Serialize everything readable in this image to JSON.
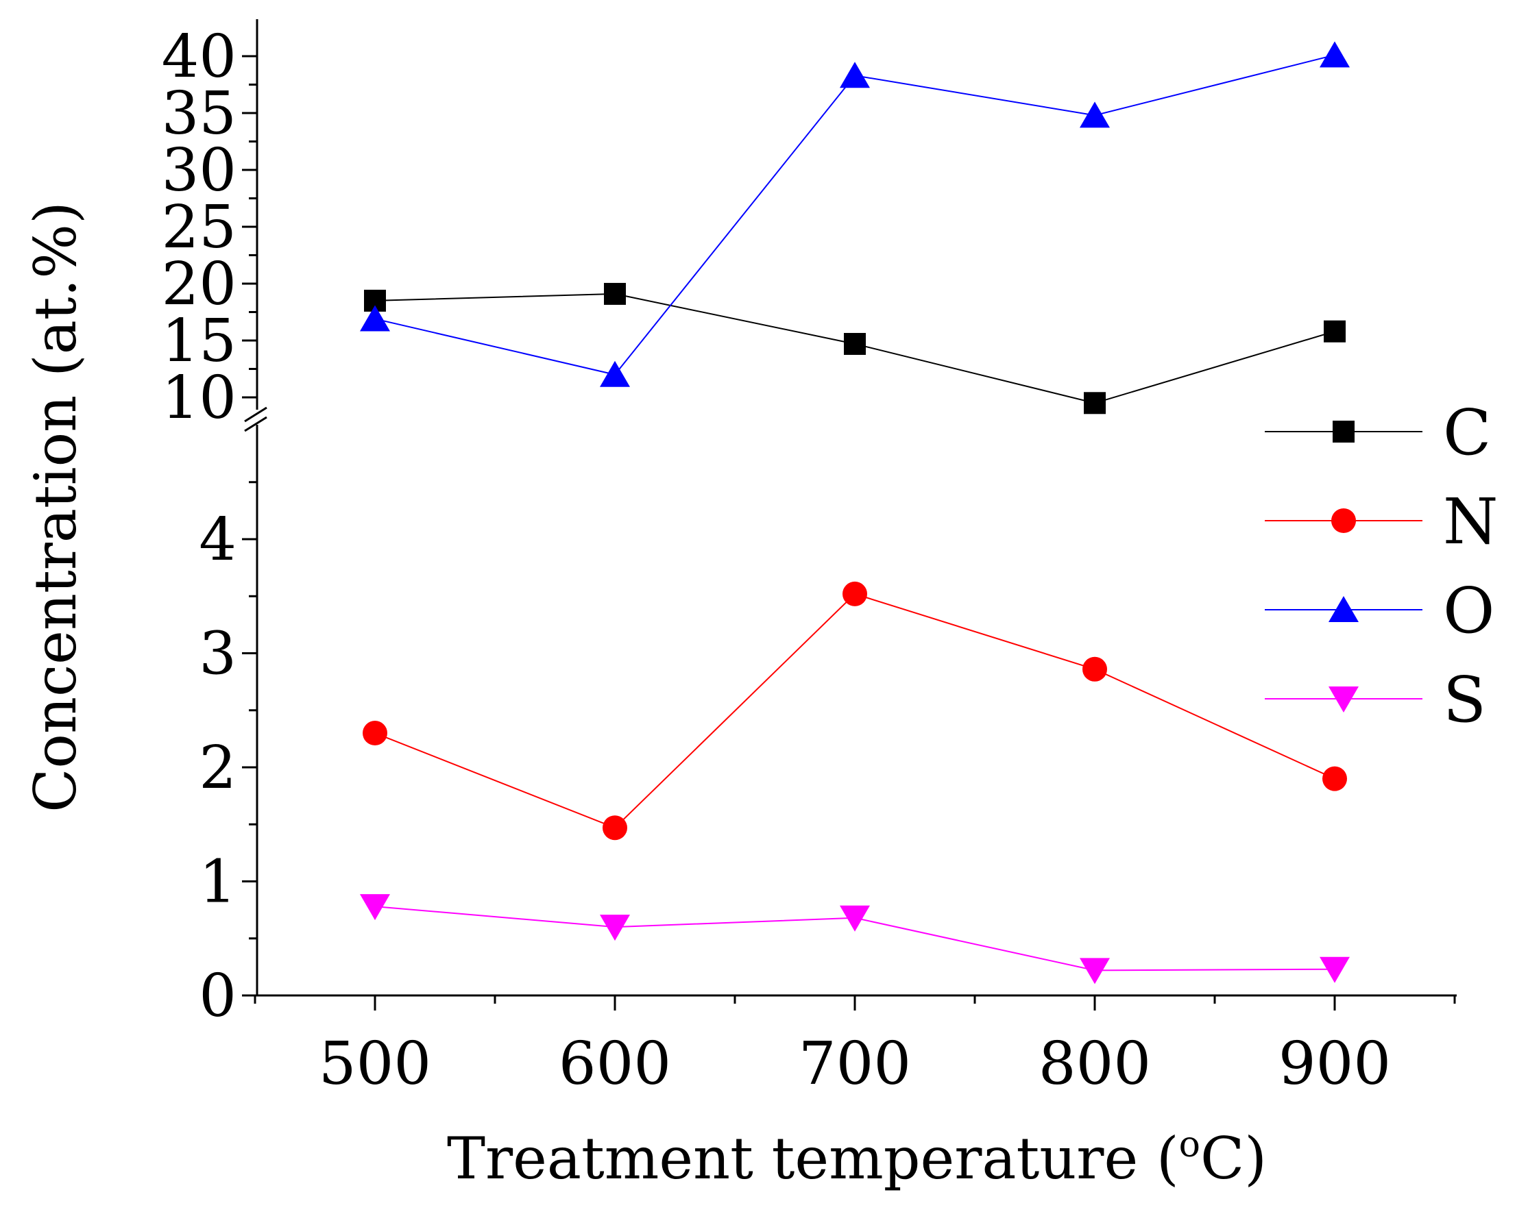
{
  "chart_data": {
    "type": "line",
    "title": "",
    "xlabel": "Treatment temperature (°C)",
    "xlabel_parts": {
      "before": "Treatment temperature (",
      "superscript": "o",
      "after": "C)"
    },
    "ylabel": "Concentration (at.%)",
    "x": [
      500,
      600,
      700,
      800,
      900
    ],
    "x_ticks": [
      "500",
      "600",
      "700",
      "800",
      "900"
    ],
    "xlim": [
      450,
      950
    ],
    "y_axis_break": true,
    "y_lower": {
      "ylim": [
        0,
        4.8
      ],
      "ticks": [
        "0",
        "1",
        "2",
        "3",
        "4"
      ]
    },
    "y_upper": {
      "ylim": [
        9.5,
        42
      ],
      "ticks": [
        "10",
        "15",
        "20",
        "25",
        "30",
        "35",
        "40"
      ]
    },
    "grid": false,
    "legend_position": "right",
    "series": [
      {
        "name": "C",
        "values": [
          18.5,
          19.1,
          14.7,
          9.5,
          15.8
        ],
        "color": "#000000",
        "marker": "square",
        "segment": "upper"
      },
      {
        "name": "N",
        "values": [
          2.3,
          1.47,
          3.52,
          2.86,
          1.9
        ],
        "color": "#ff0000",
        "marker": "circle",
        "segment": "lower"
      },
      {
        "name": "O",
        "values": [
          16.9,
          12.0,
          38.3,
          34.8,
          40.1
        ],
        "color": "#0000ff",
        "marker": "triangle-up",
        "segment": "upper"
      },
      {
        "name": "S",
        "values": [
          0.78,
          0.6,
          0.68,
          0.22,
          0.23
        ],
        "color": "#ff00ff",
        "marker": "triangle-down",
        "segment": "lower"
      }
    ]
  }
}
